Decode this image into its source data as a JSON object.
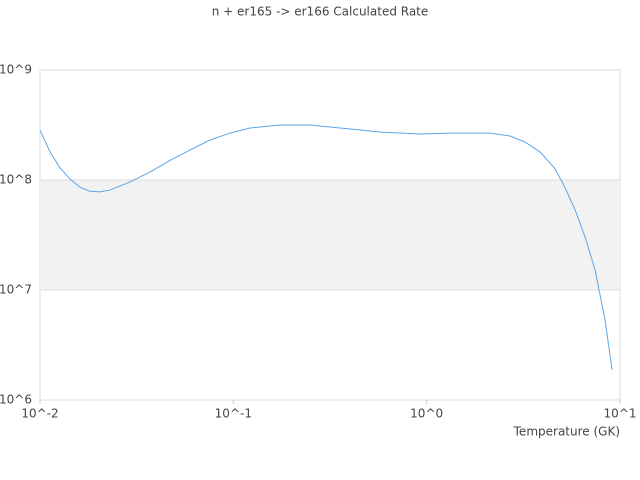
{
  "chart_data": {
    "type": "line",
    "title": "n + er165 -> er166 Calculated Rate",
    "x_label": "Temperature (GK)",
    "x": [
      0.01,
      0.01127,
      0.01268,
      0.0143,
      0.0161,
      0.0181,
      0.0204,
      0.023,
      0.0292,
      0.0371,
      0.0471,
      0.0597,
      0.0757,
      0.0962,
      0.122,
      0.174,
      0.249,
      0.357,
      0.574,
      0.925,
      1.32,
      2.13,
      2.7,
      3.23,
      3.86,
      4.62,
      5.2,
      5.86,
      6.6,
      7.43,
      8.37,
      9.1
    ],
    "series": [
      {
        "color": "#5ea5e8",
        "values": [
          285000000,
          180000000,
          129000000,
          102000000,
          86000000,
          79000000,
          78000000,
          81000000,
          96000000,
          118000000,
          151000000,
          187000000,
          231000000,
          267000000,
          297000000,
          316000000,
          316000000,
          297000000,
          273000000,
          262000000,
          267000000,
          267000000,
          251000000,
          221000000,
          180000000,
          126000000,
          85000000,
          53300000,
          30300000,
          15200000,
          5330000,
          1880000
        ]
      }
    ],
    "xlim": [
      0.01,
      10
    ],
    "ylim": [
      1000000,
      1000000000
    ],
    "xticks": [
      {
        "value": 0.01,
        "label": "10^-2"
      },
      {
        "value": 0.1,
        "label": "10^-1"
      },
      {
        "value": 1,
        "label": "10^0"
      },
      {
        "value": 10,
        "label": "10^1"
      }
    ],
    "yticks": [
      {
        "value": 1000000,
        "label": "10^6"
      },
      {
        "value": 10000000,
        "label": "10^7"
      },
      {
        "value": 100000000,
        "label": "10^8"
      },
      {
        "value": 1000000000,
        "label": "10^9"
      }
    ],
    "x_log": true,
    "y_log": true,
    "grid": true,
    "band_color": "#f2f2f2"
  }
}
